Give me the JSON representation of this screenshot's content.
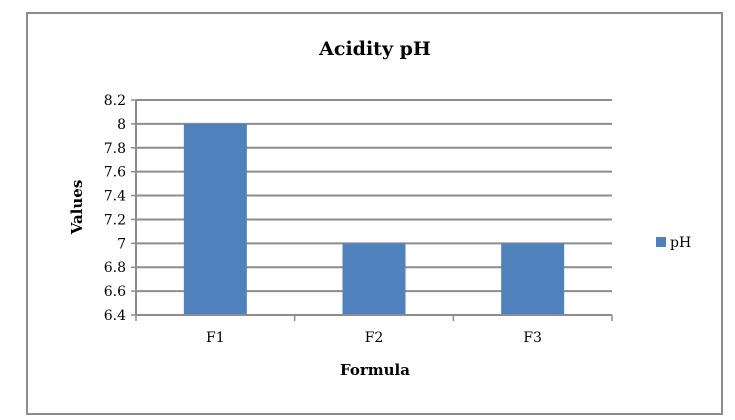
{
  "chart_data": {
    "type": "bar",
    "title": "Acidity pH",
    "xlabel": "Formula",
    "ylabel": "Values",
    "categories": [
      "F1",
      "F2",
      "F3"
    ],
    "series": [
      {
        "name": "pH",
        "values": [
          8,
          7,
          7
        ],
        "color": "#4f81bd"
      }
    ],
    "ylim": [
      6.4,
      8.2
    ],
    "yticks": [
      "6.4",
      "6.6",
      "6.8",
      "7",
      "7.2",
      "7.4",
      "7.6",
      "7.8",
      "8",
      "8.2"
    ],
    "grid": true,
    "legend": "right"
  }
}
